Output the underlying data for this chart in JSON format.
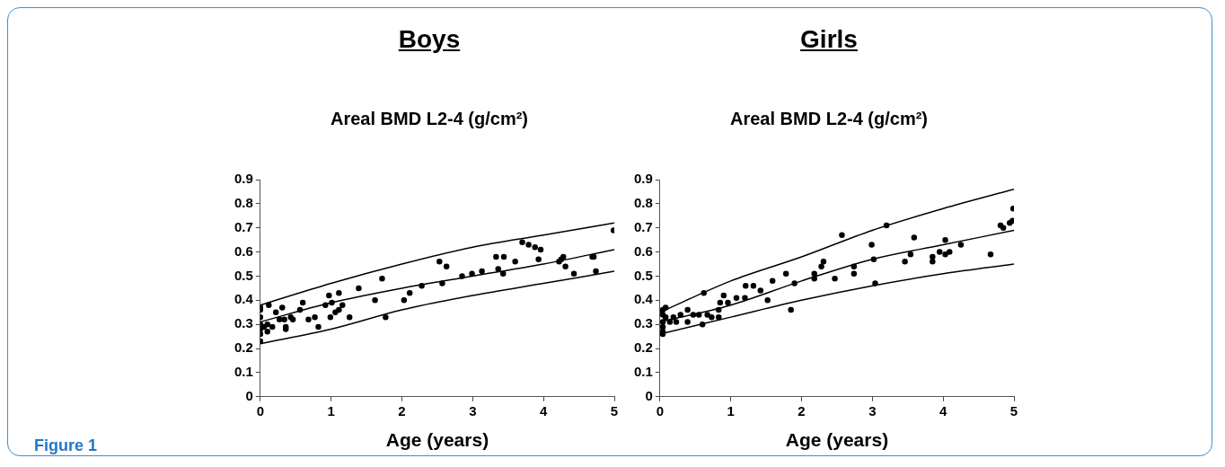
{
  "chart_data": [
    {
      "type": "scatter",
      "title": "Boys",
      "subtitle": "Areal BMD L2-4 (g/cm²)",
      "xlabel": "Age (years)",
      "xlim": [
        0,
        5
      ],
      "ylim": [
        0,
        0.9
      ],
      "xticks": [
        0,
        1,
        2,
        3,
        4,
        5
      ],
      "yticks": [
        0,
        0.1,
        0.2,
        0.3,
        0.4,
        0.5,
        0.6,
        0.7,
        0.8,
        0.9
      ],
      "grid": false,
      "annotations": [
        "Figure 1"
      ],
      "series": [
        {
          "type": "line",
          "color": "#000000",
          "marker": "none",
          "x": [
            0,
            1,
            2,
            3,
            4,
            5
          ],
          "values": [
            0.38,
            0.47,
            0.55,
            0.62,
            0.67,
            0.72
          ]
        },
        {
          "type": "line",
          "color": "#000000",
          "marker": "none",
          "x": [
            0,
            1,
            2,
            3,
            4,
            5
          ],
          "values": [
            0.31,
            0.39,
            0.45,
            0.5,
            0.55,
            0.61
          ]
        },
        {
          "type": "line",
          "color": "#000000",
          "marker": "none",
          "x": [
            0,
            1,
            2,
            3,
            4,
            5
          ],
          "values": [
            0.22,
            0.28,
            0.36,
            0.42,
            0.47,
            0.52
          ]
        },
        {
          "type": "scatter",
          "color": "#000000",
          "marker": "circle",
          "x": [
            0,
            0,
            0,
            0,
            0,
            0,
            0,
            0.05,
            0.1,
            0.12,
            0.1,
            0.17,
            0.22,
            0.27,
            0.31,
            0.34,
            0.36,
            0.36,
            0.43,
            0.46,
            0.56,
            0.6,
            0.68,
            0.77,
            0.82,
            0.92,
            0.97,
            0.99,
            1.01,
            1.06,
            1.11,
            1.11,
            1.16,
            1.26,
            1.39,
            1.62,
            1.72,
            1.77,
            2.03,
            2.11,
            2.28,
            2.53,
            2.57,
            2.63,
            2.85,
            2.99,
            3.13,
            3.33,
            3.36,
            3.44,
            3.43,
            3.6,
            3.7,
            3.79,
            3.88,
            3.96,
            3.93,
            4.22,
            4.25,
            4.28,
            4.31,
            4.43,
            4.69,
            4.71,
            4.74,
            4.99
          ],
          "values": [
            0.23,
            0.26,
            0.28,
            0.3,
            0.33,
            0.36,
            0.37,
            0.29,
            0.3,
            0.38,
            0.27,
            0.29,
            0.35,
            0.32,
            0.37,
            0.32,
            0.29,
            0.28,
            0.33,
            0.32,
            0.36,
            0.39,
            0.32,
            0.33,
            0.29,
            0.38,
            0.42,
            0.33,
            0.39,
            0.35,
            0.36,
            0.43,
            0.38,
            0.33,
            0.45,
            0.4,
            0.49,
            0.33,
            0.4,
            0.43,
            0.46,
            0.56,
            0.47,
            0.54,
            0.5,
            0.51,
            0.52,
            0.58,
            0.53,
            0.58,
            0.51,
            0.56,
            0.64,
            0.63,
            0.62,
            0.61,
            0.57,
            0.56,
            0.57,
            0.58,
            0.54,
            0.51,
            0.58,
            0.58,
            0.52,
            0.69
          ]
        }
      ]
    },
    {
      "type": "scatter",
      "title": "Girls",
      "subtitle": "Areal BMD L2-4 (g/cm²)",
      "xlabel": "Age (years)",
      "xlim": [
        0,
        5
      ],
      "ylim": [
        0,
        0.9
      ],
      "xticks": [
        0,
        1,
        2,
        3,
        4,
        5
      ],
      "yticks": [
        0,
        0.1,
        0.2,
        0.3,
        0.4,
        0.5,
        0.6,
        0.7,
        0.8,
        0.9
      ],
      "grid": false,
      "series": [
        {
          "type": "line",
          "color": "#000000",
          "marker": "none",
          "x": [
            0,
            1,
            2,
            3,
            4,
            5
          ],
          "values": [
            0.35,
            0.48,
            0.58,
            0.69,
            0.78,
            0.86
          ]
        },
        {
          "type": "line",
          "color": "#000000",
          "marker": "none",
          "x": [
            0,
            1,
            2,
            3,
            4,
            5
          ],
          "values": [
            0.31,
            0.38,
            0.48,
            0.57,
            0.63,
            0.69
          ]
        },
        {
          "type": "line",
          "color": "#000000",
          "marker": "none",
          "x": [
            0,
            1,
            2,
            3,
            4,
            5
          ],
          "values": [
            0.26,
            0.33,
            0.4,
            0.46,
            0.51,
            0.55
          ]
        },
        {
          "type": "scatter",
          "color": "#000000",
          "marker": "circle",
          "x": [
            0.04,
            0.04,
            0.04,
            0.04,
            0.04,
            0.04,
            0.08,
            0.08,
            0.14,
            0.19,
            0.23,
            0.29,
            0.39,
            0.39,
            0.47,
            0.55,
            0.6,
            0.62,
            0.67,
            0.73,
            0.83,
            0.83,
            0.85,
            0.9,
            0.96,
            1.08,
            1.2,
            1.21,
            1.32,
            1.42,
            1.52,
            1.59,
            1.78,
            1.85,
            1.9,
            2.18,
            2.18,
            2.28,
            2.31,
            2.47,
            2.57,
            2.74,
            2.74,
            2.99,
            3.02,
            3.04,
            3.2,
            3.46,
            3.54,
            3.59,
            3.85,
            3.85,
            3.95,
            4.03,
            4.03,
            4.09,
            4.25,
            4.67,
            4.81,
            4.85,
            4.94,
            4.98,
            4.99
          ],
          "values": [
            0.26,
            0.27,
            0.29,
            0.31,
            0.34,
            0.36,
            0.37,
            0.33,
            0.31,
            0.33,
            0.31,
            0.34,
            0.31,
            0.36,
            0.34,
            0.34,
            0.3,
            0.43,
            0.34,
            0.33,
            0.33,
            0.36,
            0.39,
            0.42,
            0.39,
            0.41,
            0.41,
            0.46,
            0.46,
            0.44,
            0.4,
            0.48,
            0.51,
            0.36,
            0.47,
            0.49,
            0.51,
            0.54,
            0.56,
            0.49,
            0.67,
            0.54,
            0.51,
            0.63,
            0.57,
            0.47,
            0.71,
            0.56,
            0.59,
            0.66,
            0.58,
            0.56,
            0.6,
            0.65,
            0.59,
            0.6,
            0.63,
            0.59,
            0.71,
            0.7,
            0.72,
            0.73,
            0.78
          ]
        }
      ]
    }
  ]
}
